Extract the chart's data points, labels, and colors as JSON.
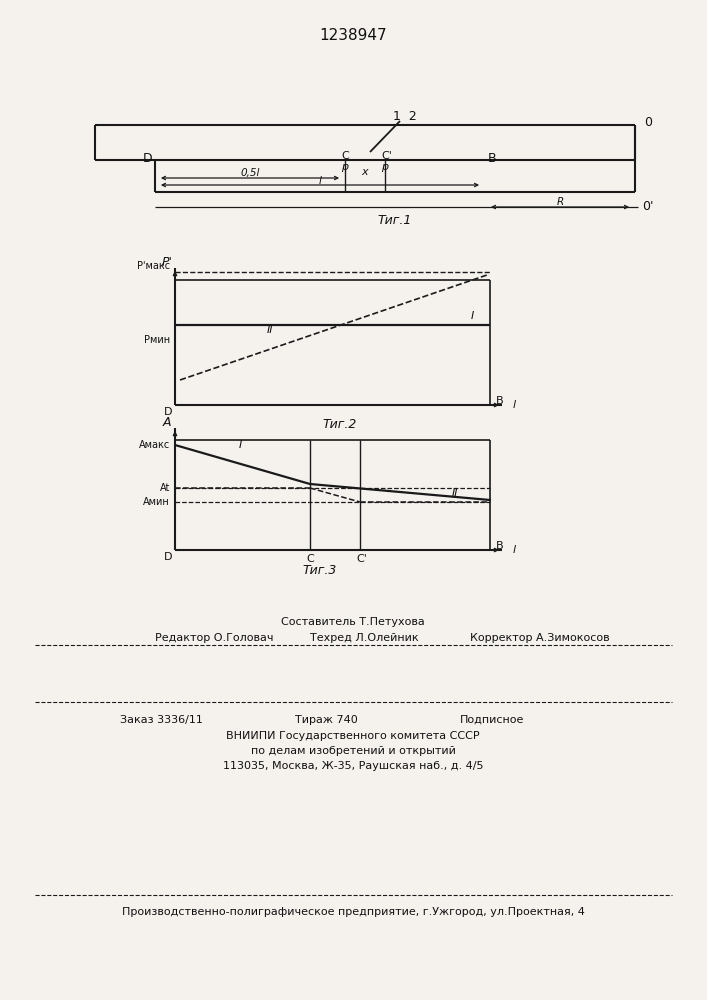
{
  "title": "1238947",
  "bg_color": "#f5f2ee",
  "line_color": "#1a1a1a",
  "fig1_caption": "Τиг.1",
  "fig2_caption": "Τиг.2",
  "fig3_caption": "Τиг.3",
  "footer_sestavitel": "Составитель Т.Петухова",
  "footer_redaktor": "Редактор О.Головач",
  "footer_tehred": "Техред Л.Олейник",
  "footer_korrektor": "Корректор А.Зимокосов",
  "footer_zakaz": "Заказ 3336/11",
  "footer_tirazh": "Тираж 740",
  "footer_podpisnoe": "Подписное",
  "footer_vniiki1": "ВНИИПИ Государственного комитета СССР",
  "footer_vniiki2": "по делам изобретений и открытий",
  "footer_address": "113035, Москва, Ж-35, Раушская наб., д. 4/5",
  "footer_production": "Производственно-полиграфическое предприятие, г.Ужгород, ул.Проектная, 4"
}
